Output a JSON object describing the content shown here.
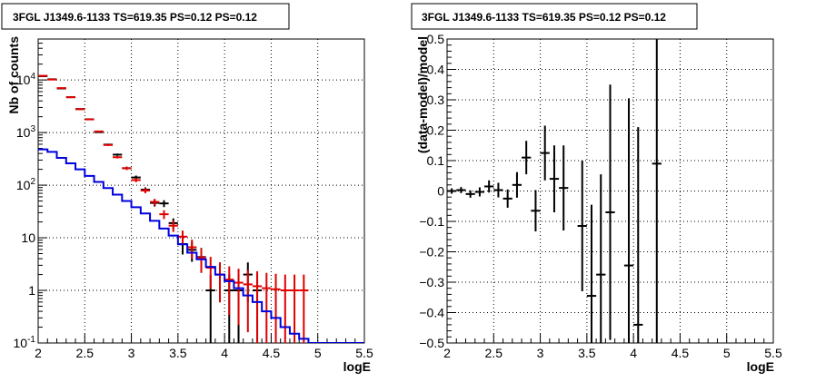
{
  "chart_data": [
    {
      "type": "scatter",
      "title": "3FGL J1349.6-1133 TS=619.35 PS=0.12 PS=0.12",
      "xlabel": "logE",
      "ylabel": "Nb of counts",
      "xlim": [
        2,
        5.5
      ],
      "ylim": [
        0.1,
        60000
      ],
      "yscale": "log",
      "grid": true,
      "xticks": [
        "2",
        "2.5",
        "3",
        "3.5",
        "4",
        "4.5",
        "5",
        "5.5"
      ],
      "yticks": [
        "10^{-1}",
        "1",
        "10",
        "10^{2}",
        "10^{3}",
        "10^{4}"
      ],
      "series": [
        {
          "role": "data",
          "color": "#000000",
          "x": [
            2.05,
            2.15,
            2.25,
            2.35,
            2.45,
            2.55,
            2.65,
            2.75,
            2.85,
            2.95,
            3.05,
            3.15,
            3.25,
            3.35,
            3.45,
            3.55,
            3.65,
            3.75,
            3.85,
            3.95,
            4.05,
            4.15,
            4.25,
            4.35
          ],
          "y": [
            11800,
            10300,
            6900,
            4700,
            2800,
            1790,
            1020,
            590,
            380,
            210,
            140,
            82,
            46,
            45,
            19,
            7.6,
            5.9,
            4.3,
            1,
            2,
            1,
            1,
            2,
            1
          ],
          "err": [
            109,
            101,
            83,
            69,
            53,
            42,
            32,
            24,
            19,
            14.5,
            12,
            9,
            6.8,
            6.7,
            4.4,
            2.8,
            2.4,
            2.1,
            1,
            1.4,
            1,
            1,
            1.4,
            1
          ]
        },
        {
          "role": "model",
          "color": "#e00000",
          "x": [
            2.05,
            2.15,
            2.25,
            2.35,
            2.45,
            2.55,
            2.65,
            2.75,
            2.85,
            2.95,
            3.05,
            3.15,
            3.25,
            3.35,
            3.45,
            3.55,
            3.65,
            3.75,
            3.85,
            3.95,
            4.05,
            4.15,
            4.25,
            4.35,
            4.45,
            4.55,
            4.65,
            4.75,
            4.85
          ],
          "y": [
            12000,
            10200,
            7000,
            4700,
            2780,
            1780,
            1050,
            580,
            340,
            210,
            125,
            79,
            48,
            28,
            17,
            10.5,
            6.6,
            4.2,
            2.7,
            2.0,
            1.6,
            1.4,
            1.3,
            1.2,
            1.1,
            1.05,
            1.0,
            1.0,
            1.0
          ],
          "err": [
            110,
            101,
            84,
            69,
            53,
            42,
            32,
            24,
            18,
            14.5,
            11,
            8.9,
            6.9,
            5.3,
            4.1,
            3.2,
            2.6,
            2.05,
            1.64,
            1.41,
            1.26,
            1.18,
            1.14,
            1.1,
            1.05,
            1.02,
            1.0,
            1.0,
            1.0
          ]
        },
        {
          "role": "background",
          "type": "step",
          "color": "#0000dd",
          "edges": [
            2.0,
            2.1,
            2.2,
            2.3,
            2.4,
            2.5,
            2.6,
            2.7,
            2.8,
            2.9,
            3.0,
            3.1,
            3.2,
            3.3,
            3.4,
            3.5,
            3.6,
            3.7,
            3.8,
            3.9,
            4.0,
            4.1,
            4.2,
            4.3,
            4.4,
            4.5,
            4.6,
            4.7,
            4.8,
            4.9,
            5.0,
            5.1,
            5.2,
            5.3,
            5.4,
            5.5
          ],
          "y": [
            480,
            430,
            330,
            260,
            200,
            150,
            115,
            88,
            66,
            50,
            38,
            29,
            21,
            15,
            11,
            7.5,
            5.2,
            3.9,
            2.8,
            2.0,
            1.5,
            1.1,
            0.8,
            0.6,
            0.4,
            0.3,
            0.2,
            0.15,
            0.12,
            0.1,
            0.1,
            0.1,
            0.1,
            0.1,
            0.1
          ]
        }
      ]
    },
    {
      "type": "scatter",
      "title": "3FGL J1349.6-1133 TS=619.35 PS=0.12 PS=0.12",
      "xlabel": "logE",
      "ylabel": "(data-model)/model",
      "xlim": [
        2,
        5.5
      ],
      "ylim": [
        -0.5,
        0.5
      ],
      "grid": true,
      "xticks": [
        "2",
        "2.5",
        "3",
        "3.5",
        "4",
        "4.5",
        "5",
        "5.5"
      ],
      "yticks": [
        "−0.5",
        "−0.4",
        "−0.3",
        "−0.2",
        "−0.1",
        "0",
        "0.1",
        "0.2",
        "0.3",
        "0.4",
        "0.5"
      ],
      "series": [
        {
          "role": "residual",
          "color": "#000000",
          "x": [
            2.05,
            2.15,
            2.25,
            2.35,
            2.45,
            2.55,
            2.65,
            2.75,
            2.85,
            2.95,
            3.05,
            3.15,
            3.25,
            3.45,
            3.55,
            3.65,
            3.75,
            3.95,
            4.05,
            4.25
          ],
          "y": [
            0.0,
            0.003,
            -0.01,
            -0.003,
            0.015,
            0.003,
            -0.025,
            0.02,
            0.11,
            -0.065,
            0.125,
            0.04,
            0.01,
            -0.115,
            -0.345,
            -0.275,
            -0.07,
            -0.245,
            -0.44,
            0.09
          ],
          "err": [
            0.009,
            0.01,
            0.012,
            0.015,
            0.02,
            0.024,
            0.03,
            0.042,
            0.055,
            0.068,
            0.09,
            0.11,
            0.14,
            0.215,
            0.3,
            0.33,
            0.42,
            0.55,
            0.65,
            0.8
          ]
        }
      ]
    }
  ]
}
